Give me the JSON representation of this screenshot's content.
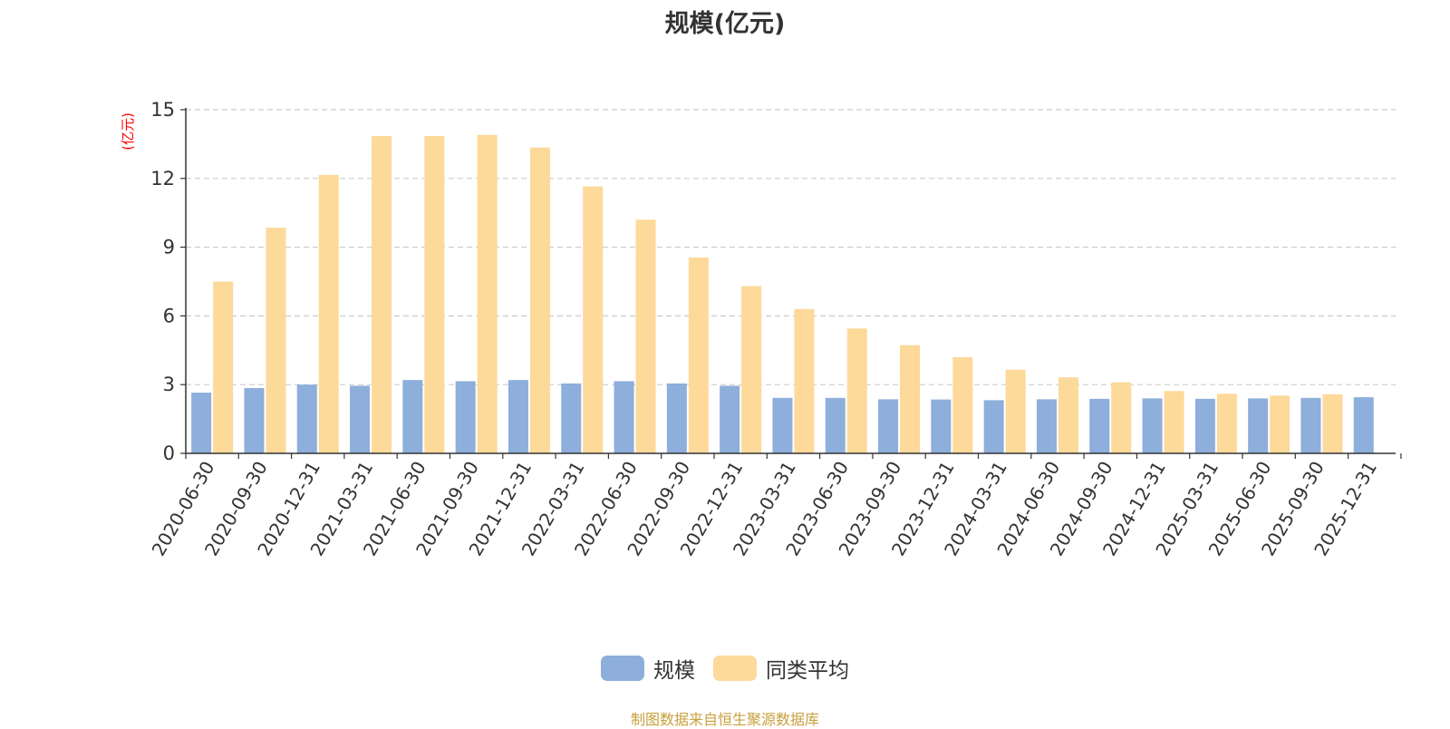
{
  "chart_data": {
    "type": "bar",
    "title": "规模(亿元)",
    "ylabel": "(亿元)",
    "xlabel": "",
    "ylim": [
      0,
      15
    ],
    "yticks": [
      0,
      3,
      6,
      9,
      12,
      15
    ],
    "grid": true,
    "legend_position": "bottom",
    "categories": [
      "2020-06-30",
      "2020-09-30",
      "2020-12-31",
      "2021-03-31",
      "2021-06-30",
      "2021-09-30",
      "2021-12-31",
      "2022-03-31",
      "2022-06-30",
      "2022-09-30",
      "2022-12-31",
      "2023-03-31",
      "2023-06-30",
      "2023-09-30",
      "2023-12-31",
      "2024-03-31",
      "2024-06-30",
      "2024-09-30",
      "2024-12-31",
      "2025-03-31",
      "2025-06-30",
      "2025-09-30",
      "2025-12-31"
    ],
    "series": [
      {
        "name": "规模",
        "color": "#8eaedb",
        "values": [
          2.65,
          2.85,
          3.0,
          2.95,
          3.2,
          3.15,
          3.2,
          3.05,
          3.15,
          3.05,
          2.95,
          2.42,
          2.42,
          2.36,
          2.35,
          2.32,
          2.36,
          2.38,
          2.4,
          2.38,
          2.4,
          2.42,
          2.45
        ]
      },
      {
        "name": "同类平均",
        "color": "#fdd99a",
        "values": [
          7.5,
          9.85,
          12.15,
          13.85,
          13.85,
          13.9,
          13.35,
          11.65,
          10.2,
          8.55,
          7.3,
          6.3,
          5.45,
          4.72,
          4.2,
          3.65,
          3.32,
          3.1,
          2.72,
          2.6,
          2.52,
          2.58,
          null
        ]
      }
    ]
  },
  "footer": {
    "source": "制图数据来自恒生聚源数据库"
  },
  "colors": {
    "axis": "#333333",
    "grid": "#cccccc",
    "ylabel": "#ff0000"
  }
}
